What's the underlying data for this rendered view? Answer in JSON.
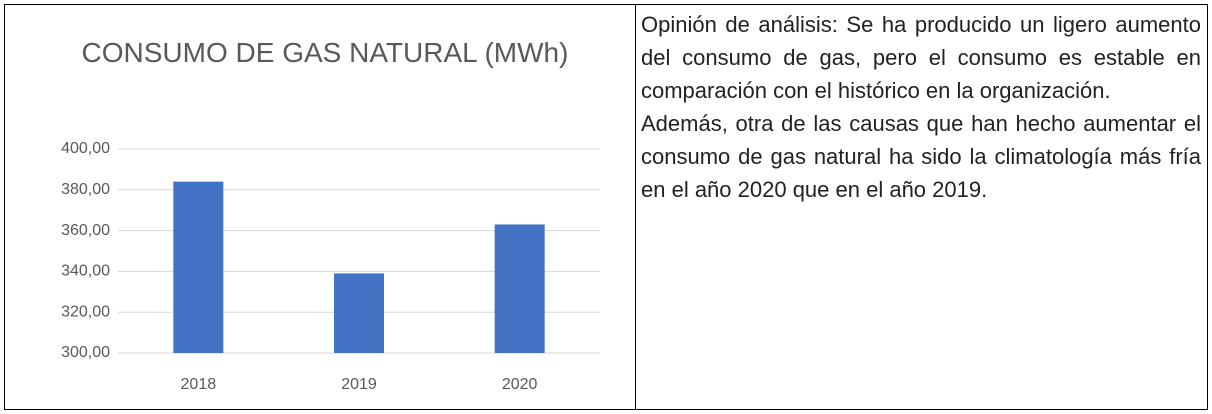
{
  "chart_data": {
    "type": "bar",
    "title": "CONSUMO DE GAS NATURAL (MWh)",
    "categories": [
      "2018",
      "2019",
      "2020"
    ],
    "values": [
      384,
      339,
      363
    ],
    "color": "#4472c4",
    "ylim": [
      300,
      400
    ],
    "yticks": [
      {
        "value": 300,
        "label": "300,00"
      },
      {
        "value": 320,
        "label": "320,00"
      },
      {
        "value": 340,
        "label": "340,00"
      },
      {
        "value": 360,
        "label": "360,00"
      },
      {
        "value": 380,
        "label": "380,00"
      },
      {
        "value": 400,
        "label": "400,00"
      }
    ],
    "grid": true
  },
  "analysis": {
    "paragraphs": [
      "Opinión de análisis: Se ha producido un ligero aumento del consumo de gas, pero el consumo es estable en comparación con el histórico en la organización.",
      "Además, otra de las causas que han hecho aumentar el consumo de gas natural ha sido la climatología más fría en el año 2020 que en el año 2019."
    ]
  }
}
